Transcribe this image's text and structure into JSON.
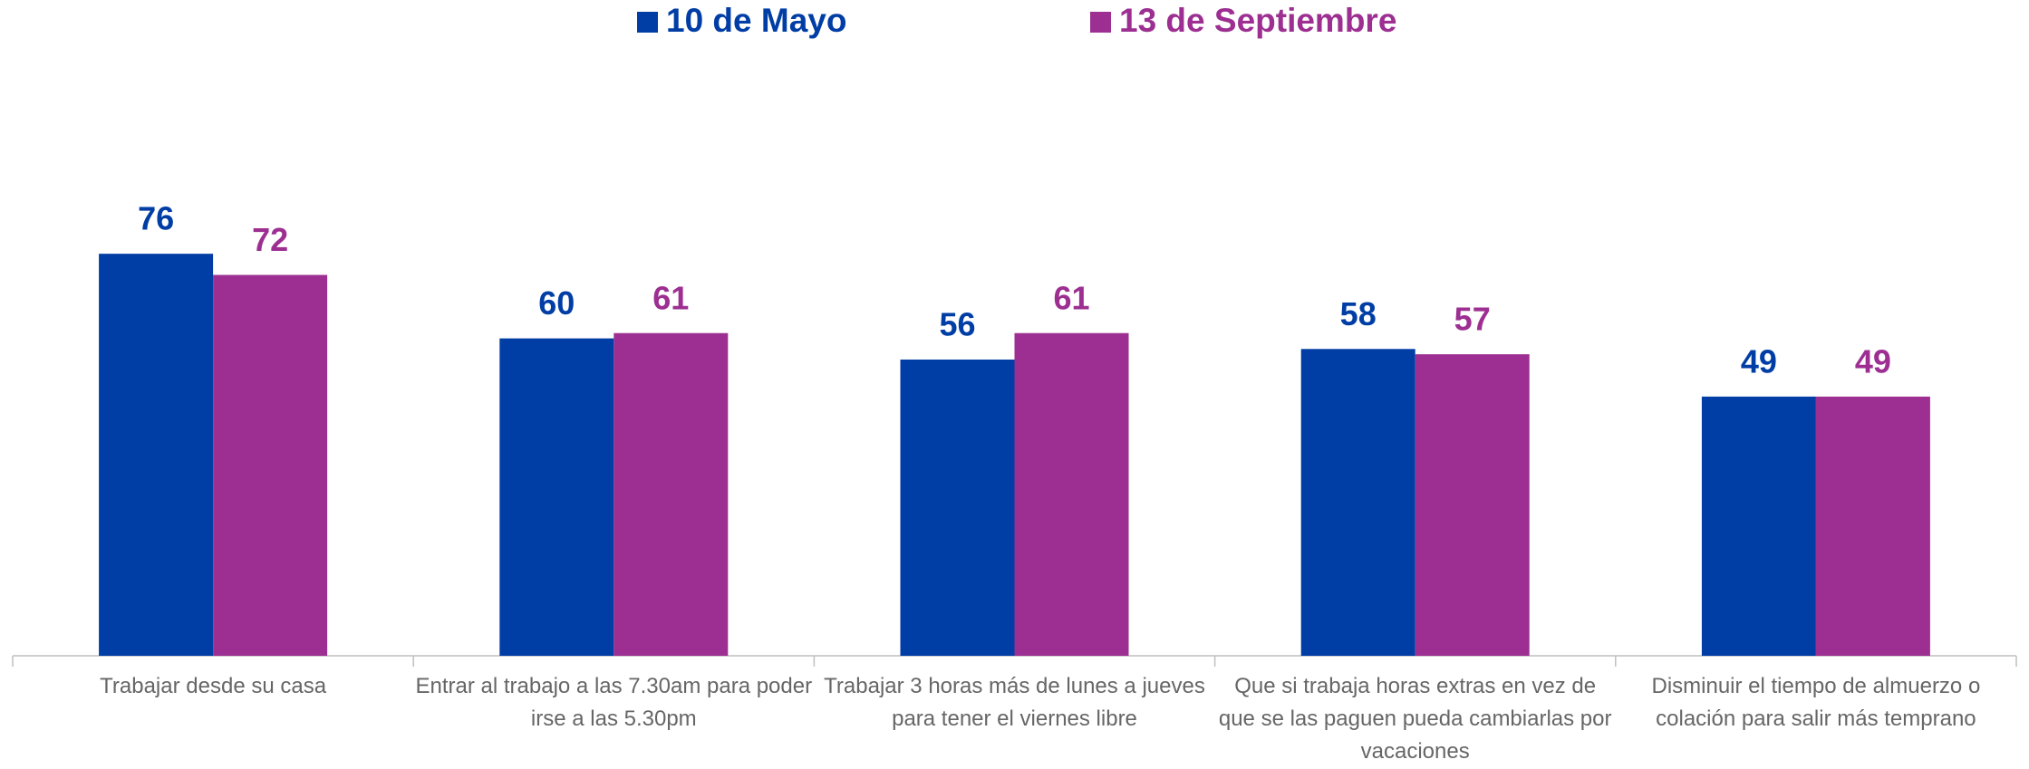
{
  "chart_data": {
    "type": "bar",
    "categories": [
      "Trabajar desde su casa",
      "Entrar al trabajo a las 7.30am para poder irse a las 5.30pm",
      "Trabajar 3 horas más de lunes a jueves para tener el viernes libre",
      "Que si trabaja horas extras en vez de que se las paguen pueda cambiarlas por vacaciones",
      "Disminuir el tiempo de almuerzo o colación para salir más temprano"
    ],
    "series": [
      {
        "name": "10 de Mayo",
        "color": "#003da5",
        "values": [
          76,
          60,
          56,
          58,
          49
        ]
      },
      {
        "name": "13 de Septiembre",
        "color": "#9c2f91",
        "values": [
          72,
          61,
          61,
          57,
          49
        ]
      }
    ],
    "ylim": [
      0,
      100
    ],
    "legend": "top"
  }
}
